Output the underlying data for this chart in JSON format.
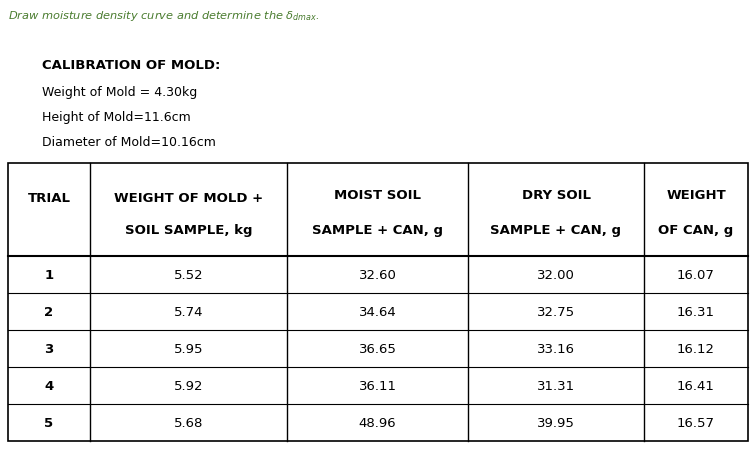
{
  "title_text": "Draw moisture density curve and determine the ",
  "title_math": "$\\delta_{dmax}$",
  "title_suffix": ".",
  "title_color": "#4a7c2f",
  "calibration_header": "CALIBRATION OF MOLD:",
  "calibration_lines": [
    "Weight of Mold = 4.30kg",
    "Height of Mold=11.6cm",
    "Diameter of Mold=10.16cm"
  ],
  "col_headers_line1": [
    "TRIAL",
    "WEIGHT OF MOLD +",
    "MOIST SOIL",
    "DRY SOIL",
    "WEIGHT"
  ],
  "col_headers_line2": [
    "",
    "SOIL SAMPLE, kg",
    "SAMPLE + CAN, g",
    "SAMPLE + CAN, g",
    "OF CAN, g"
  ],
  "trials": [
    1,
    2,
    3,
    4,
    5
  ],
  "weight_mold_soil": [
    5.52,
    5.74,
    5.95,
    5.92,
    5.68
  ],
  "moist_soil": [
    32.6,
    34.64,
    36.65,
    36.11,
    48.96
  ],
  "dry_soil": [
    32.0,
    32.75,
    33.16,
    31.31,
    39.95
  ],
  "weight_can": [
    16.07,
    16.31,
    16.12,
    16.41,
    16.57
  ],
  "bg_color": "#ffffff",
  "text_color": "#000000"
}
